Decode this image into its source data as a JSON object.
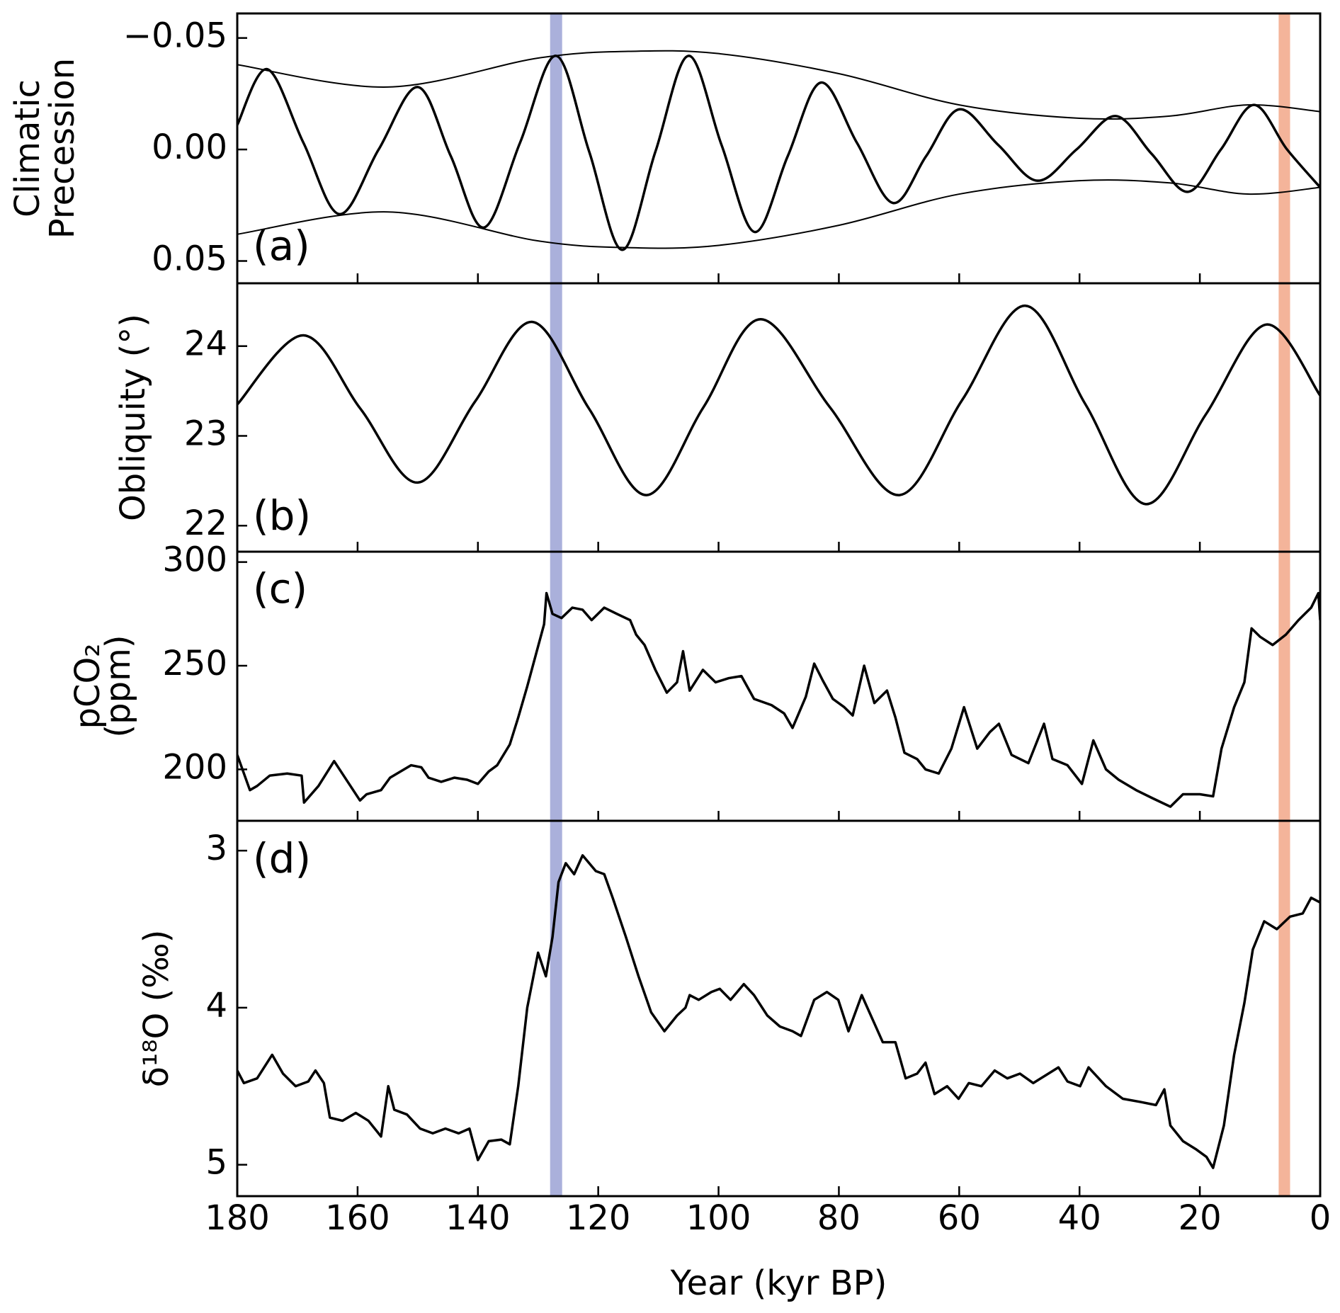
{
  "chart_data": [
    {
      "type": "line",
      "annotation": "(a)",
      "ylabel": [
        "Climatic",
        "Precession"
      ],
      "smooth": true,
      "xlim": [
        180,
        0
      ],
      "xticks": [
        180,
        160,
        140,
        120,
        100,
        80,
        60,
        40,
        20,
        0
      ],
      "ylim": [
        0.06,
        -0.061
      ],
      "yticks": [
        {
          "value": -0.05,
          "label": "−0.05"
        },
        {
          "value": 0,
          "label": "0.00"
        },
        0.05
      ],
      "series": [
        {
          "color": "#000000",
          "linewidth": 3.5,
          "x": [
            180,
            175,
            169,
            163,
            156.5,
            150,
            144.5,
            139,
            133,
            127,
            121.5,
            116,
            110.5,
            105,
            99.5,
            94,
            88.5,
            83,
            77,
            71,
            65.5,
            60,
            53.5,
            47,
            40.5,
            34,
            28,
            22,
            16.5,
            11,
            5.5,
            0
          ],
          "values": [
            -0.011,
            -0.036,
            -0.003,
            0.029,
            0.0,
            -0.028,
            0.003,
            0.035,
            -0.003,
            -0.042,
            0.001,
            0.045,
            0.001,
            -0.042,
            -0.002,
            0.037,
            0.003,
            -0.03,
            -0.003,
            0.024,
            0.003,
            -0.018,
            -0.002,
            0.014,
            0.0,
            -0.015,
            0.002,
            0.019,
            0.0,
            -0.02,
            0.0,
            0.017
          ]
        },
        {
          "color": "#000000",
          "linewidth": 2,
          "x": [
            180,
            155,
            130,
            115,
            100,
            80,
            60,
            40,
            25,
            12,
            0
          ],
          "values": [
            -0.038,
            -0.028,
            -0.041,
            -0.044,
            -0.043,
            -0.034,
            -0.02,
            -0.014,
            -0.015,
            -0.02,
            -0.017
          ]
        },
        {
          "color": "#000000",
          "linewidth": 2,
          "x": [
            180,
            155,
            130,
            115,
            100,
            80,
            60,
            40,
            25,
            12,
            0
          ],
          "values": [
            0.038,
            0.028,
            0.041,
            0.044,
            0.043,
            0.034,
            0.02,
            0.014,
            0.015,
            0.02,
            0.017
          ]
        }
      ]
    },
    {
      "type": "line",
      "annotation": "(b)",
      "ylabel": [
        "Obliquity (°)"
      ],
      "smooth": true,
      "xlim": [
        180,
        0
      ],
      "xticks": [
        180,
        160,
        140,
        120,
        100,
        80,
        60,
        40,
        20,
        0
      ],
      "ylim": [
        21.71,
        24.7
      ],
      "yticks": [
        22,
        23,
        24
      ],
      "series": [
        {
          "color": "#000000",
          "linewidth": 3.5,
          "x": [
            180,
            169,
            159.5,
            150,
            140.5,
            131,
            121.5,
            112,
            102.5,
            93,
            81.5,
            70,
            59.5,
            49,
            39,
            29,
            19,
            9,
            0
          ],
          "values": [
            23.35,
            24.12,
            23.3,
            22.48,
            23.38,
            24.27,
            23.3,
            22.34,
            23.32,
            24.3,
            23.32,
            22.34,
            23.4,
            24.45,
            23.35,
            22.24,
            23.24,
            24.24,
            23.45
          ]
        }
      ]
    },
    {
      "type": "line",
      "annotation": "(c)",
      "ylabel": [
        "pCO₂",
        "(ppm)"
      ],
      "smooth": false,
      "xlim": [
        180,
        0
      ],
      "xticks": [
        180,
        160,
        140,
        120,
        100,
        80,
        60,
        40,
        20,
        0
      ],
      "ylim": [
        175.2,
        305
      ],
      "yticks": [
        200,
        250,
        300
      ],
      "series": [
        {
          "color": "#000000",
          "linewidth": 3.5,
          "x": [
            180,
            177.9,
            176.7,
            174.6,
            171.7,
            169.3,
            168.9,
            166.5,
            163.9,
            159.6,
            158.5,
            156.1,
            154.6,
            151.1,
            149.4,
            148.2,
            146.1,
            143.9,
            141.8,
            140.0,
            138.2,
            136.8,
            134.7,
            133.3,
            131.8,
            130.4,
            129.0,
            128.6,
            127.6,
            126.1,
            124.3,
            122.6,
            121.1,
            119.0,
            116.9,
            114.7,
            113.7,
            112.3,
            110.5,
            108.6,
            106.9,
            105.9,
            104.8,
            102.6,
            100.5,
            98.3,
            96.2,
            94.1,
            91.2,
            89.1,
            87.7,
            85.5,
            84.1,
            82.7,
            81.0,
            79.1,
            77.7,
            75.8,
            74.1,
            72.0,
            70.6,
            69.1,
            67.0,
            65.6,
            63.4,
            61.3,
            59.2,
            57.0,
            54.9,
            53.4,
            51.3,
            48.5,
            45.9,
            44.5,
            42.0,
            39.6,
            37.7,
            35.6,
            33.5,
            30.6,
            27.8,
            24.9,
            22.8,
            20.0,
            17.8,
            16.4,
            14.3,
            12.6,
            11.4,
            10.0,
            7.9,
            5.7,
            3.6,
            1.5,
            0.3,
            0
          ],
          "values": [
            207,
            190,
            192,
            197,
            198,
            197,
            184,
            192,
            204,
            185,
            188,
            190,
            196,
            202,
            201,
            196,
            194,
            196,
            195,
            193,
            199,
            202,
            212,
            225,
            240,
            255,
            270,
            285,
            275,
            273,
            278,
            277,
            272,
            278,
            275,
            272,
            265,
            260,
            248,
            237,
            242,
            257,
            238,
            248,
            242,
            244,
            245,
            234,
            231,
            227,
            220,
            235,
            251,
            243,
            234,
            230,
            226,
            250,
            232,
            238,
            225,
            208,
            205,
            200,
            198,
            210,
            230,
            210,
            218,
            222,
            207,
            203,
            222,
            205,
            202,
            193,
            214,
            200,
            195,
            190,
            186,
            182,
            188,
            188,
            187,
            210,
            230,
            242,
            268,
            264,
            260,
            265,
            272,
            278,
            285,
            272
          ]
        }
      ]
    },
    {
      "type": "line",
      "annotation": "(d)",
      "ylabel": [
        "δ¹⁸O (‰)"
      ],
      "xlabel": "Year (kyr BP)",
      "smooth": false,
      "xlim": [
        180,
        0
      ],
      "xticks": [
        180,
        160,
        140,
        120,
        100,
        80,
        60,
        40,
        20,
        0
      ],
      "ylim": [
        5.2,
        2.81
      ],
      "yticks": [
        3,
        4,
        5
      ],
      "series": [
        {
          "color": "#000000",
          "linewidth": 3.5,
          "x": [
            180,
            178.9,
            176.7,
            174.2,
            172.4,
            170.3,
            168.2,
            167.0,
            165.6,
            164.6,
            162.5,
            160.3,
            158.2,
            156.1,
            154.9,
            153.9,
            151.8,
            149.6,
            147.5,
            145.4,
            143.2,
            141.4,
            140.0,
            138.2,
            136.1,
            134.7,
            133.3,
            131.8,
            130.0,
            128.7,
            127.6,
            126.6,
            125.4,
            124.0,
            122.6,
            120.4,
            119.0,
            117.6,
            115.4,
            113.3,
            111.2,
            109.0,
            106.9,
            105.5,
            104.8,
            103.3,
            101.2,
            99.8,
            98.0,
            95.8,
            94.1,
            91.9,
            89.8,
            87.7,
            86.3,
            84.1,
            82.0,
            80.1,
            78.4,
            76.2,
            74.1,
            72.7,
            70.6,
            68.9,
            67.0,
            65.6,
            64.1,
            62.0,
            60.1,
            58.4,
            56.3,
            54.1,
            52.0,
            49.9,
            47.7,
            45.6,
            43.5,
            42.0,
            39.9,
            38.5,
            35.6,
            32.8,
            29.9,
            27.3,
            25.9,
            24.9,
            22.8,
            20.7,
            18.9,
            17.8,
            16.0,
            14.3,
            12.6,
            11.2,
            9.3,
            7.2,
            5.0,
            2.9,
            1.5,
            0
          ],
          "values": [
            4.4,
            4.48,
            4.45,
            4.3,
            4.42,
            4.5,
            4.47,
            4.4,
            4.48,
            4.7,
            4.72,
            4.67,
            4.72,
            4.82,
            4.5,
            4.65,
            4.68,
            4.77,
            4.8,
            4.77,
            4.8,
            4.77,
            4.97,
            4.85,
            4.84,
            4.87,
            4.5,
            4.0,
            3.65,
            3.8,
            3.55,
            3.2,
            3.08,
            3.15,
            3.03,
            3.13,
            3.15,
            3.3,
            3.55,
            3.8,
            4.03,
            4.15,
            4.05,
            4.0,
            3.92,
            3.95,
            3.9,
            3.88,
            3.95,
            3.85,
            3.92,
            4.05,
            4.12,
            4.15,
            4.18,
            3.95,
            3.9,
            3.95,
            4.15,
            3.92,
            4.1,
            4.22,
            4.22,
            4.45,
            4.42,
            4.35,
            4.55,
            4.5,
            4.58,
            4.48,
            4.5,
            4.4,
            4.45,
            4.42,
            4.48,
            4.43,
            4.38,
            4.47,
            4.5,
            4.38,
            4.5,
            4.58,
            4.6,
            4.62,
            4.52,
            4.75,
            4.85,
            4.9,
            4.95,
            5.02,
            4.75,
            4.3,
            3.97,
            3.63,
            3.45,
            3.5,
            3.42,
            3.4,
            3.3,
            3.33
          ]
        }
      ]
    }
  ],
  "bands": [
    {
      "xlim": [
        128,
        126
      ],
      "color": "#aab0db"
    },
    {
      "xlim": [
        6.9,
        5.0
      ],
      "color": "#f4b49a"
    }
  ]
}
